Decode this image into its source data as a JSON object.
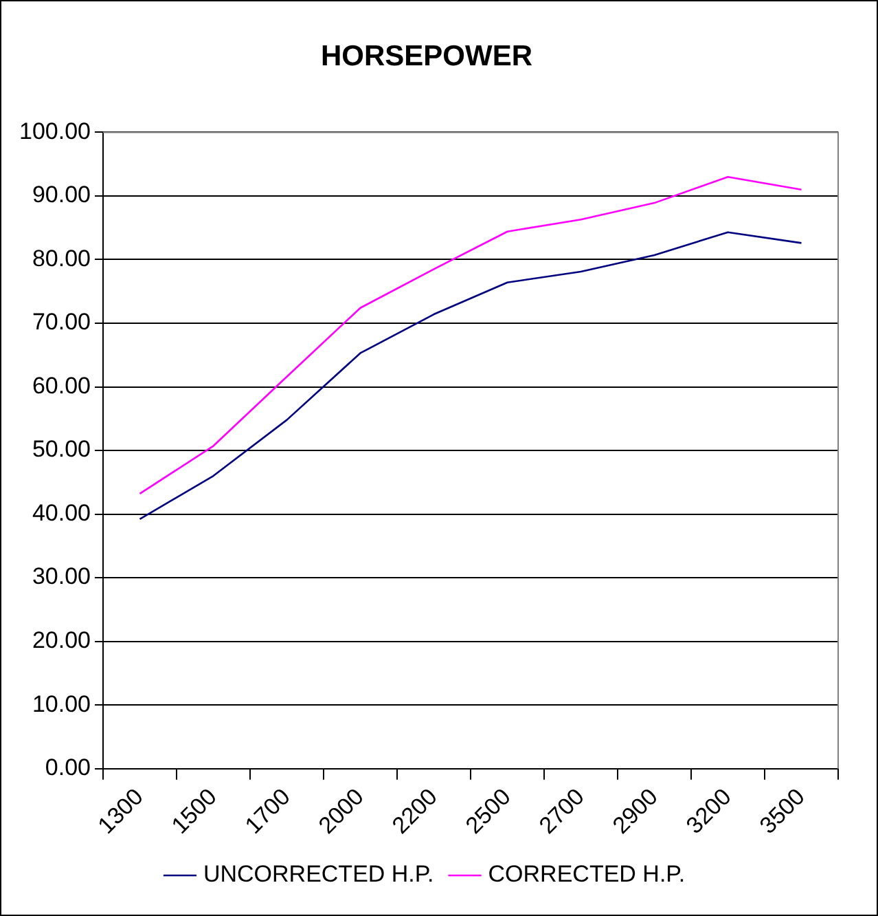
{
  "chart_data": {
    "type": "line",
    "title": "HORSEPOWER",
    "categories": [
      "1300",
      "1500",
      "1700",
      "2000",
      "2200",
      "2500",
      "2700",
      "2900",
      "3200",
      "3500"
    ],
    "series": [
      {
        "name": "UNCORRECTED H.P.",
        "color": "#000080",
        "values": [
          39.2,
          46.0,
          54.8,
          65.3,
          71.4,
          76.4,
          78.1,
          80.7,
          84.3,
          82.6
        ]
      },
      {
        "name": "CORRECTED H.P.",
        "color": "#ff00ff",
        "values": [
          43.2,
          50.7,
          61.6,
          72.4,
          78.5,
          84.4,
          86.3,
          88.9,
          93.0,
          91.0
        ]
      }
    ],
    "ylim": [
      0,
      100
    ],
    "yticks": [
      {
        "value": 0,
        "label": "0.00"
      },
      {
        "value": 10,
        "label": "10.00"
      },
      {
        "value": 20,
        "label": "20.00"
      },
      {
        "value": 30,
        "label": "30.00"
      },
      {
        "value": 40,
        "label": "40.00"
      },
      {
        "value": 50,
        "label": "50.00"
      },
      {
        "value": 60,
        "label": "60.00"
      },
      {
        "value": 70,
        "label": "70.00"
      },
      {
        "value": 80,
        "label": "80.00"
      },
      {
        "value": 90,
        "label": "90.00"
      },
      {
        "value": 100,
        "label": "100.00"
      }
    ],
    "grid": "y",
    "legend": "bottom",
    "marker": "none",
    "line_style": "solid"
  }
}
